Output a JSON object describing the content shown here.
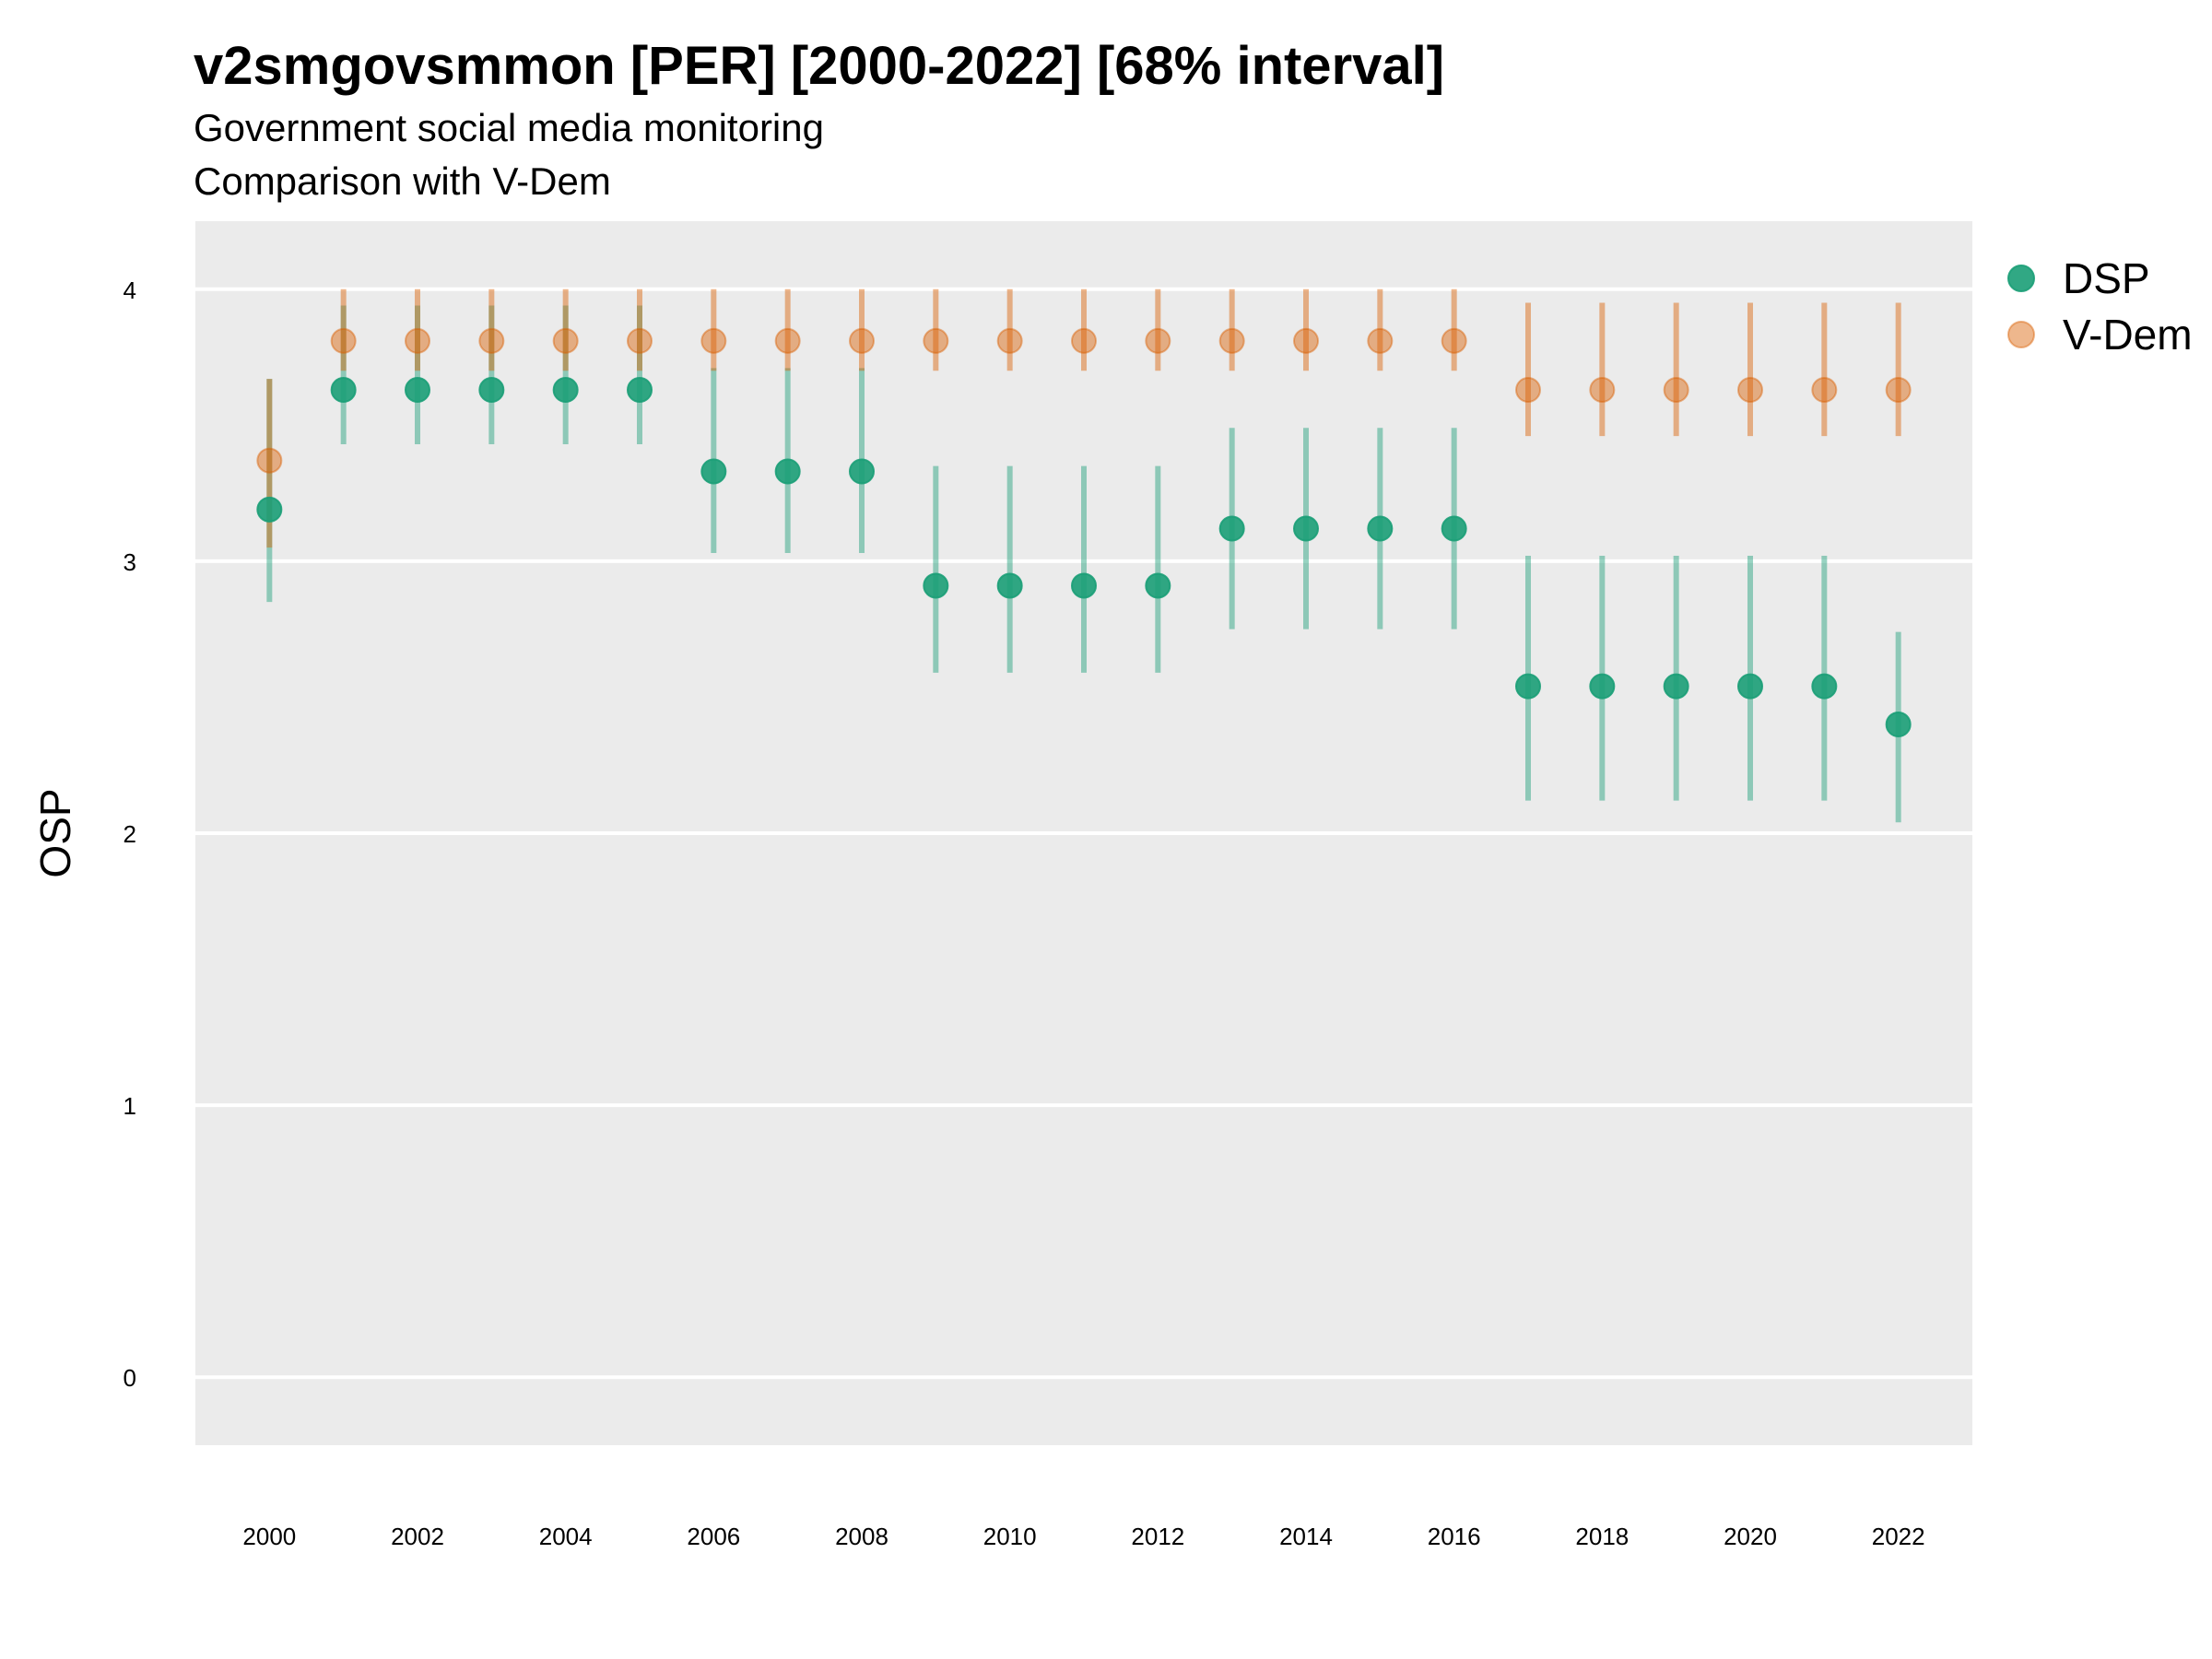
{
  "chart_data": {
    "type": "scatter",
    "title": "v2smgovsmmon [PER] [2000-2022] [68% interval]",
    "subtitle": "Government social media monitoring",
    "caption": "Comparison with V-Dem",
    "ylabel": "OSP",
    "xlabel": "",
    "xlim": [
      1999.0,
      2023.0
    ],
    "ylim": [
      -0.25,
      4.25
    ],
    "x_ticks": [
      2000,
      2002,
      2004,
      2006,
      2008,
      2010,
      2012,
      2014,
      2016,
      2018,
      2020,
      2022
    ],
    "x_tick_labels": [
      "2000",
      "2002",
      "2004",
      "2006",
      "2008",
      "2010",
      "2012",
      "2014",
      "2016",
      "2018",
      "2020",
      "2022"
    ],
    "y_ticks": [
      0,
      1,
      2,
      3,
      4
    ],
    "y_tick_labels": [
      "0",
      "1",
      "2",
      "3",
      "4"
    ],
    "grid": true,
    "legend_position": "right",
    "x": [
      2000,
      2001,
      2002,
      2003,
      2004,
      2005,
      2006,
      2007,
      2008,
      2009,
      2010,
      2011,
      2012,
      2013,
      2014,
      2015,
      2016,
      2017,
      2018,
      2019,
      2020,
      2021,
      2022
    ],
    "series": [
      {
        "name": "DSP",
        "color": "#1b9e77",
        "values": [
          3.19,
          3.63,
          3.63,
          3.63,
          3.63,
          3.63,
          3.33,
          3.33,
          3.33,
          2.91,
          2.91,
          2.91,
          2.91,
          3.12,
          3.12,
          3.12,
          3.12,
          2.54,
          2.54,
          2.54,
          2.54,
          2.54,
          2.4
        ],
        "lower": [
          2.85,
          3.43,
          3.43,
          3.43,
          3.43,
          3.43,
          3.03,
          3.03,
          3.03,
          2.59,
          2.59,
          2.59,
          2.59,
          2.75,
          2.75,
          2.75,
          2.75,
          2.12,
          2.12,
          2.12,
          2.12,
          2.12,
          2.04
        ],
        "upper": [
          3.67,
          3.94,
          3.94,
          3.94,
          3.94,
          3.94,
          3.71,
          3.71,
          3.71,
          3.35,
          3.35,
          3.35,
          3.35,
          3.49,
          3.49,
          3.49,
          3.49,
          3.02,
          3.02,
          3.02,
          3.02,
          3.02,
          2.74
        ]
      },
      {
        "name": "V-Dem",
        "color": "#d95f02",
        "values": [
          3.37,
          3.81,
          3.81,
          3.81,
          3.81,
          3.81,
          3.81,
          3.81,
          3.81,
          3.81,
          3.81,
          3.81,
          3.81,
          3.81,
          3.81,
          3.81,
          3.81,
          3.63,
          3.63,
          3.63,
          3.63,
          3.63,
          3.63
        ],
        "lower": [
          3.05,
          3.7,
          3.7,
          3.7,
          3.7,
          3.7,
          3.7,
          3.7,
          3.7,
          3.7,
          3.7,
          3.7,
          3.7,
          3.7,
          3.7,
          3.7,
          3.7,
          3.46,
          3.46,
          3.46,
          3.46,
          3.46,
          3.46
        ],
        "upper": [
          3.67,
          4.0,
          4.0,
          4.0,
          4.0,
          4.0,
          4.0,
          4.0,
          4.0,
          4.0,
          4.0,
          4.0,
          4.0,
          4.0,
          4.0,
          4.0,
          4.0,
          3.95,
          3.95,
          3.95,
          3.95,
          3.95,
          3.95
        ]
      }
    ]
  }
}
